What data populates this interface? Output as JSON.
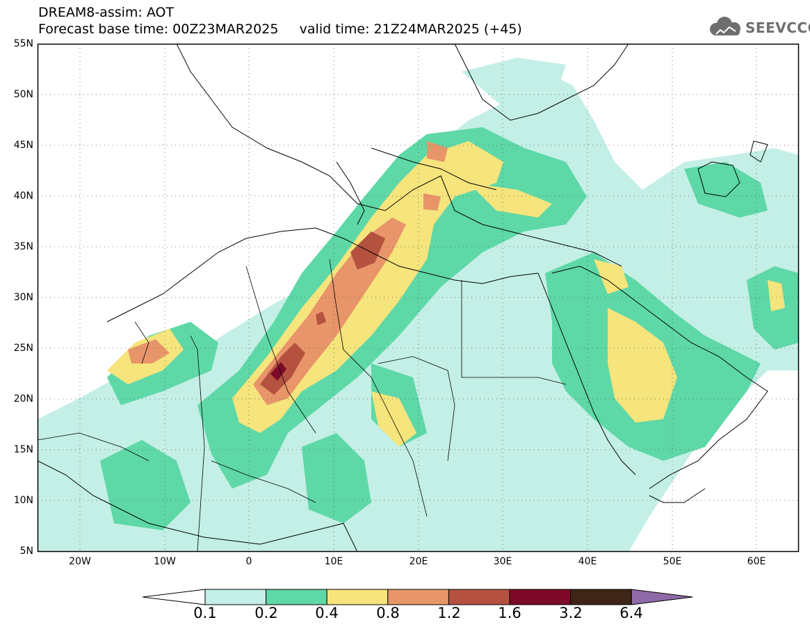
{
  "header": {
    "line1": "DREAM8-assim: AOT",
    "line2": "Forecast base time: 00Z23MAR2025     valid time: 21Z24MAR2025 (+45)"
  },
  "logo": {
    "text": "SEEVCCC",
    "icon": "cloud-icon"
  },
  "map": {
    "lat_labels": [
      "55N",
      "50N",
      "45N",
      "40N",
      "35N",
      "30N",
      "25N",
      "20N",
      "15N",
      "10N",
      "5N"
    ],
    "lon_labels": [
      "20W",
      "10W",
      "0",
      "10E",
      "20E",
      "30E",
      "40E",
      "50E",
      "60E"
    ],
    "grid": "dotted"
  },
  "legend": {
    "labels": [
      "0.1",
      "0.2",
      "0.4",
      "0.8",
      "1.2",
      "1.6",
      "3.2",
      "6.4"
    ],
    "colors": [
      "#ffffff",
      "#c3efe6",
      "#5ed8a6",
      "#f6e47c",
      "#e8956a",
      "#b4523f",
      "#7c0a28",
      "#3e2515",
      "#8f6aa8"
    ]
  }
}
